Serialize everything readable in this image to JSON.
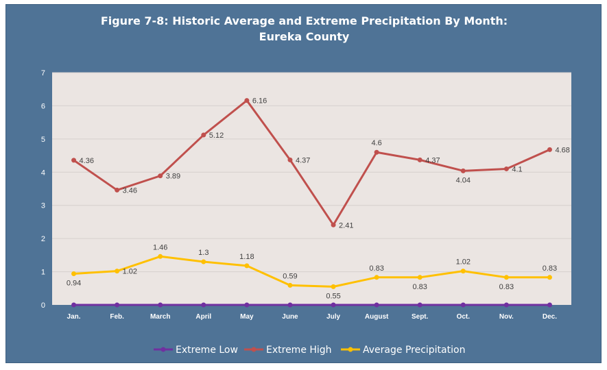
{
  "chart_data": {
    "type": "line",
    "title_line1": "Figure 7-8: Historic Average and Extreme Precipitation By Month:",
    "title_line2": "Eureka County",
    "categories": [
      "Jan.",
      "Feb.",
      "March",
      "April",
      "May",
      "June",
      "July",
      "August",
      "Sept.",
      "Oct.",
      "Nov.",
      "Dec."
    ],
    "ylim": [
      0,
      7
    ],
    "yticks": [
      "0",
      "1",
      "2",
      "3",
      "4",
      "5",
      "6",
      "7"
    ],
    "grid": true,
    "legend_position": "bottom",
    "series": [
      {
        "name": "Extreme Low",
        "color": "#7030a0",
        "values": [
          0,
          0,
          0,
          0,
          0,
          0,
          0,
          0,
          0,
          0,
          0,
          0
        ],
        "labels": [],
        "label_side": []
      },
      {
        "name": "Extreme High",
        "color": "#c0504d",
        "values": [
          4.36,
          3.46,
          3.89,
          5.12,
          6.16,
          4.37,
          2.41,
          4.6,
          4.37,
          4.04,
          4.1,
          4.68
        ],
        "labels": [
          "4.36",
          "3.46",
          "3.89",
          "5.12",
          "6.16",
          "4.37",
          "2.41",
          "4.6",
          "4.37",
          "4.04",
          "4.1",
          "4.68"
        ],
        "label_side": [
          "right",
          "right",
          "right",
          "right",
          "right",
          "right",
          "right",
          "above",
          "right",
          "below",
          "right",
          "right"
        ]
      },
      {
        "name": "Average Precipitation",
        "color": "#ffc000",
        "values": [
          0.94,
          1.02,
          1.46,
          1.3,
          1.18,
          0.59,
          0.55,
          0.83,
          0.83,
          1.02,
          0.83,
          0.83
        ],
        "labels": [
          "0.94",
          "1.02",
          "1.46",
          "1.3",
          "1.18",
          "0.59",
          "0.55",
          "0.83",
          "0.83",
          "1.02",
          "0.83",
          "0.83"
        ],
        "label_side": [
          "below",
          "right",
          "above",
          "above",
          "above",
          "above",
          "below",
          "above",
          "below",
          "above",
          "below",
          "above"
        ]
      }
    ]
  }
}
